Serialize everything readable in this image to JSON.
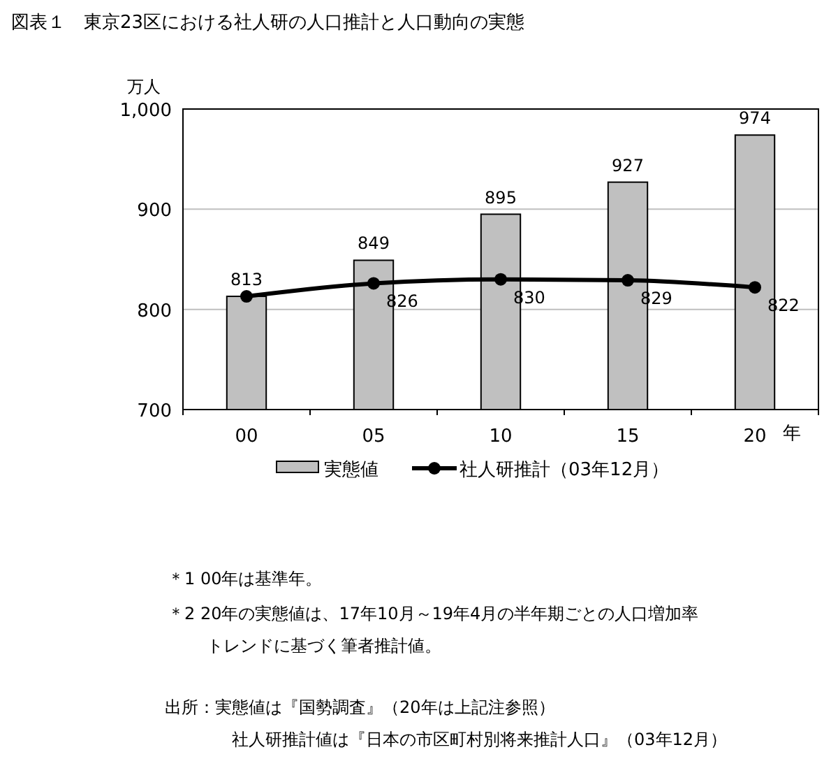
{
  "chart_data": {
    "type": "bar",
    "title": "図表１　東京23区における社人研の人口推計と人口動向の実態",
    "ylabel": "万人",
    "xlabel": "年",
    "categories": [
      "00",
      "05",
      "10",
      "15",
      "20"
    ],
    "series": [
      {
        "name": "実態値",
        "color": "#c0c0c0",
        "values": [
          813,
          849,
          895,
          927,
          974
        ],
        "value_labels": [
          "813",
          "849",
          "895",
          "927",
          "974"
        ]
      },
      {
        "name": "社人研推計（03年12月）",
        "type": "line",
        "color": "#000000",
        "marker": "circle",
        "values": [
          813,
          826,
          830,
          829,
          822
        ],
        "value_labels": [
          null,
          "826",
          "830",
          "829",
          "822"
        ]
      }
    ],
    "ylim": [
      700,
      1000
    ],
    "yticks": [
      700,
      800,
      900,
      {
        "value": 1000,
        "label": "1,000"
      }
    ],
    "grid": "y",
    "legend": "bottom",
    "annotations": [
      "＊1 00年は基準年。",
      "＊2 20年の実態値は、17年10月～19年4月の半年期ごとの人口増加率トレンドに基づく筆者推計値。",
      "出所：実態値は『国勢調査』（20年は上記注参照）",
      "社人研推計値は『日本の市区町村別将来推計人口』（03年12月）"
    ]
  }
}
